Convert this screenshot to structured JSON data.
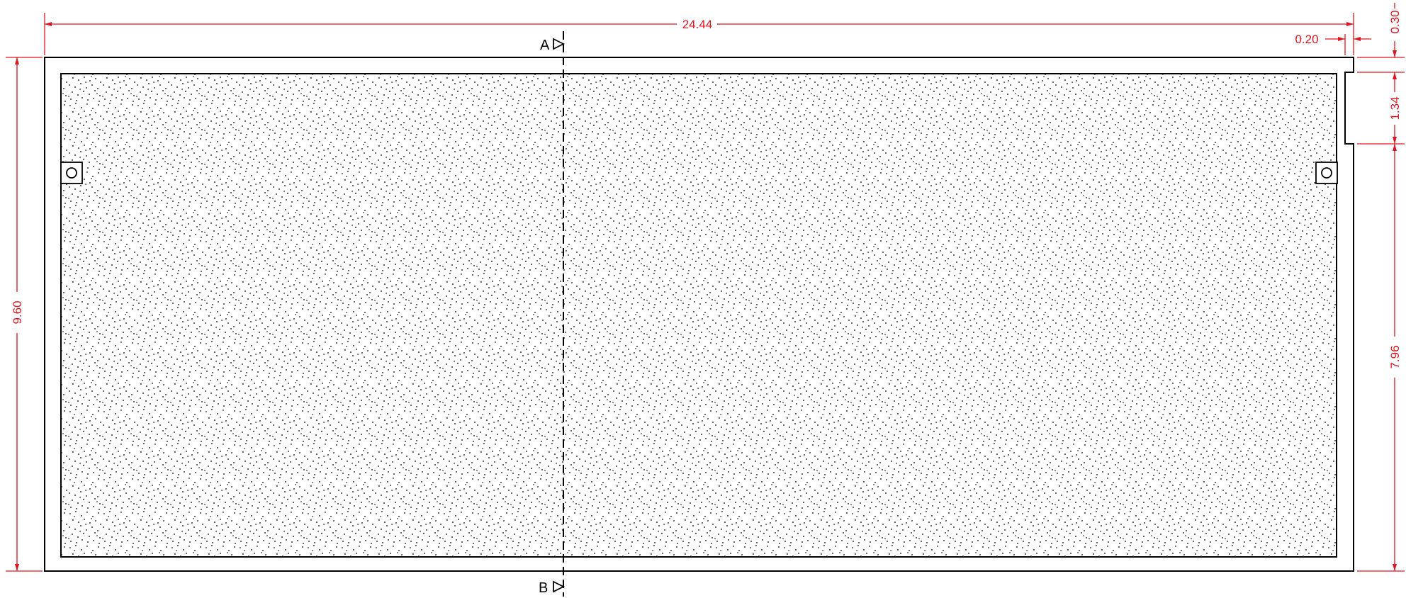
{
  "colors": {
    "line": "#000000",
    "dimension": "#e0141e",
    "background": "#ffffff"
  },
  "section_markers": {
    "top": "A",
    "bottom": "B"
  },
  "dimensions": {
    "overall_width": "24.44",
    "overall_height": "9.60",
    "inner_height": "7.96",
    "notch_height": "1.34",
    "top_offset": "0.30",
    "wall_thickness": "0.20"
  },
  "icons": {
    "section_arrow": "section-arrow-icon",
    "anchor_marker": "circle-marker-icon",
    "arrowhead": "dimension-arrow-icon"
  }
}
